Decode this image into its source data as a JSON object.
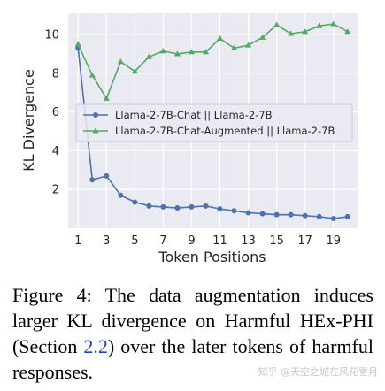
{
  "chart_data": {
    "type": "line",
    "title": "",
    "xlabel": "Token Positions",
    "ylabel": "KL Divergence",
    "xlim": [
      0.3,
      20.7
    ],
    "ylim": [
      0.0,
      11.1
    ],
    "xticks": [
      1,
      3,
      5,
      7,
      9,
      11,
      13,
      15,
      17,
      19
    ],
    "yticks": [
      2,
      4,
      6,
      8,
      10
    ],
    "grid": true,
    "background": "#eaeaf2",
    "legend_position": "center-left",
    "x": [
      1,
      2,
      3,
      4,
      5,
      6,
      7,
      8,
      9,
      10,
      11,
      12,
      13,
      14,
      15,
      16,
      17,
      18,
      19,
      20
    ],
    "series": [
      {
        "name": "Llama-2-7B-Chat || Llama-2-7B",
        "color": "#4c72b0",
        "marker": "circle",
        "values": [
          9.3,
          2.5,
          2.7,
          1.7,
          1.35,
          1.15,
          1.1,
          1.05,
          1.1,
          1.15,
          1.0,
          0.9,
          0.8,
          0.75,
          0.7,
          0.7,
          0.65,
          0.6,
          0.5,
          0.6
        ]
      },
      {
        "name": "Llama-2-7B-Chat-Augmented || Llama-2-7B",
        "color": "#55a868",
        "marker": "triangle",
        "values": [
          9.5,
          7.9,
          6.7,
          8.6,
          8.1,
          8.85,
          9.15,
          9.0,
          9.1,
          9.1,
          9.8,
          9.3,
          9.45,
          9.85,
          10.5,
          10.05,
          10.15,
          10.45,
          10.55,
          10.15
        ]
      }
    ]
  },
  "caption": {
    "prefix": "Figure 4:",
    "text_1": " The data augmentation induces larger KL divergence on Harmful HEx-PHI (Section ",
    "ref": "2.2",
    "text_2": ") over the later tokens of harmful responses."
  },
  "watermark": "知乎 @天空之城在风花雪月"
}
